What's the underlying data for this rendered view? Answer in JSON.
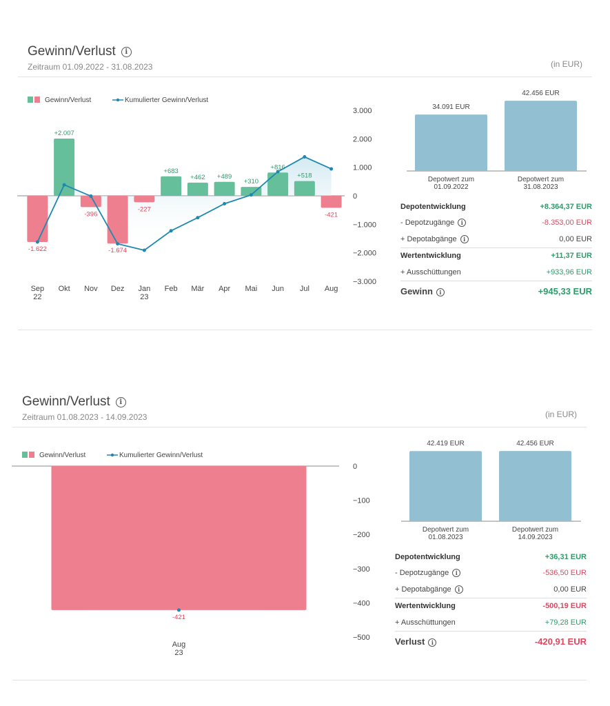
{
  "colors": {
    "positive": "#66bf9b",
    "negative": "#ee7f8f",
    "line": "#1f88b0",
    "depot": "#93bfd2",
    "pos_text": "#2e9a6a",
    "neg_text": "#e0455f"
  },
  "icons": [
    "info-icon"
  ],
  "panels": [
    {
      "title": "Gewinn/Verlust",
      "period": "Zeitraum 01.09.2022 - 31.08.2023",
      "unit": "(in EUR)",
      "legend": {
        "bars": "Gewinn/Verlust",
        "line": "Kumulierter Gewinn/Verlust"
      },
      "chart_data": {
        "type": "bar",
        "categories": [
          "Sep 22",
          "Okt",
          "Nov",
          "Dez",
          "Jan 23",
          "Feb",
          "Mär",
          "Apr",
          "Mai",
          "Jun",
          "Jul",
          "Aug"
        ],
        "category_lines": [
          [
            "Sep",
            "22"
          ],
          [
            "Okt"
          ],
          [
            "Nov"
          ],
          [
            "Dez"
          ],
          [
            "Jan",
            "23"
          ],
          [
            "Feb"
          ],
          [
            "Mär"
          ],
          [
            "Apr"
          ],
          [
            "Mai"
          ],
          [
            "Jun"
          ],
          [
            "Jul"
          ],
          [
            "Aug"
          ]
        ],
        "series": [
          {
            "name": "Gewinn/Verlust",
            "type": "bar",
            "values": [
              -1622,
              2007,
              -396,
              -1674,
              -227,
              683,
              462,
              489,
              310,
              816,
              518,
              -421
            ],
            "labels": [
              "-1.622",
              "+2.007",
              "-396",
              "-1.674",
              "-227",
              "+683",
              "+462",
              "+489",
              "+310",
              "+816",
              "+518",
              "-421"
            ]
          },
          {
            "name": "Kumulierter Gewinn/Verlust",
            "type": "line",
            "values": [
              -1622,
              385,
              -11,
              -1685,
              -1912,
              -1229,
              -767,
              -278,
              32,
              848,
              1366,
              945
            ]
          }
        ],
        "yticks": [
          3000,
          2000,
          1000,
          0,
          -1000,
          -2000,
          -3000
        ],
        "ytick_labels": [
          "3.000",
          "2.000",
          "1.000",
          "0",
          "−1.000",
          "−2.000",
          "−3.000"
        ],
        "ylim": [
          -3000,
          3000
        ]
      },
      "depot_chart": {
        "categories": [
          [
            "Depotwert zum",
            "01.09.2022"
          ],
          [
            "Depotwert zum",
            "31.08.2023"
          ]
        ],
        "values": [
          34091,
          42456
        ],
        "labels": [
          "34.091 EUR",
          "42.456 EUR"
        ]
      },
      "table": [
        {
          "label": "Depotentwicklung",
          "value": "+8.364,37 EUR",
          "tone": "pos",
          "bold": true
        },
        {
          "label": "- Depotzugänge",
          "value": "-8.353,00 EUR",
          "tone": "neg",
          "info": true
        },
        {
          "label": "+ Depotabgänge",
          "value": "0,00 EUR",
          "tone": "neu",
          "info": true
        },
        {
          "label": "Wertentwicklung",
          "value": "+11,37 EUR",
          "tone": "pos",
          "bold": true,
          "sep": true
        },
        {
          "label": "+ Ausschüttungen",
          "value": "+933,96 EUR",
          "tone": "pos"
        },
        {
          "label": "Gewinn",
          "value": "+945,33 EUR",
          "tone": "pos",
          "big": true,
          "sep": true,
          "info": true
        }
      ]
    },
    {
      "title": "Gewinn/Verlust",
      "period": "Zeitraum 01.08.2023 - 14.09.2023",
      "unit": "(in EUR)",
      "legend": {
        "bars": "Gewinn/Verlust",
        "line": "Kumulierter Gewinn/Verlust"
      },
      "chart_data": {
        "type": "bar",
        "categories": [
          "Aug 23"
        ],
        "category_lines": [
          [
            "Aug",
            "23"
          ]
        ],
        "series": [
          {
            "name": "Gewinn/Verlust",
            "type": "bar",
            "values": [
              -421
            ],
            "labels": [
              "-421"
            ]
          },
          {
            "name": "Kumulierter Gewinn/Verlust",
            "type": "line",
            "values": [
              -421
            ]
          }
        ],
        "yticks": [
          0,
          -100,
          -200,
          -300,
          -400,
          -500
        ],
        "ytick_labels": [
          "0",
          "−100",
          "−200",
          "−300",
          "−400",
          "−500"
        ],
        "ylim": [
          -500,
          0
        ]
      },
      "depot_chart": {
        "categories": [
          [
            "Depotwert zum",
            "01.08.2023"
          ],
          [
            "Depotwert zum",
            "14.09.2023"
          ]
        ],
        "values": [
          42419,
          42456
        ],
        "labels": [
          "42.419 EUR",
          "42.456 EUR"
        ]
      },
      "table": [
        {
          "label": "Depotentwicklung",
          "value": "+36,31 EUR",
          "tone": "pos",
          "bold": true
        },
        {
          "label": "- Depotzugänge",
          "value": "-536,50 EUR",
          "tone": "neg",
          "info": true
        },
        {
          "label": "+ Depotabgänge",
          "value": "0,00 EUR",
          "tone": "neu",
          "info": true
        },
        {
          "label": "Wertentwicklung",
          "value": "-500,19 EUR",
          "tone": "neg",
          "bold": true,
          "sep": true
        },
        {
          "label": "+ Ausschüttungen",
          "value": "+79,28 EUR",
          "tone": "pos"
        },
        {
          "label": "Verlust",
          "value": "-420,91 EUR",
          "tone": "neg",
          "big": true,
          "sep": true,
          "info": true
        }
      ]
    }
  ]
}
